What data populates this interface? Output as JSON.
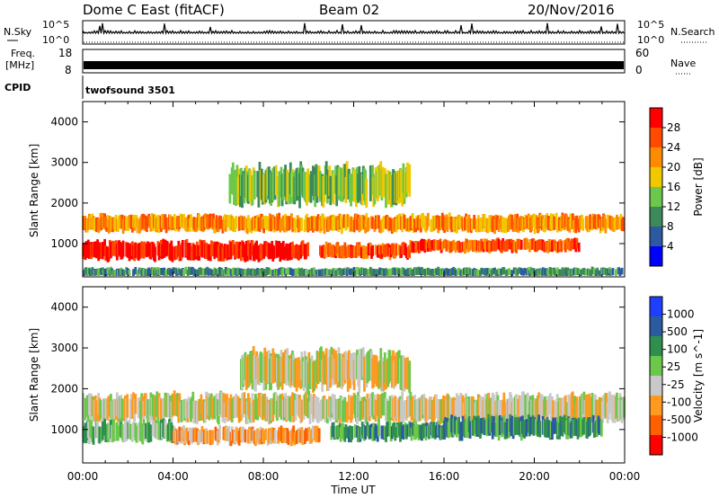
{
  "header": {
    "site": "Dome C East (fitACF)",
    "beam": "Beam 02",
    "date": "20/Nov/2016"
  },
  "status_panels": {
    "nsky_label": "N.Sky",
    "nsearch_label": "N.Search",
    "freq_label": "Freq.",
    "freq_unit": "[MHz]",
    "nave_label": "Nave",
    "cpid_label": "CPID",
    "cpid_value": "twofsound 3501",
    "left_top_ticks": [
      "10^5",
      "10^0"
    ],
    "right_top_ticks": [
      "10^5",
      "10^0"
    ],
    "freq_ticks": [
      "18",
      "8"
    ],
    "nave_ticks": [
      "60",
      "0"
    ]
  },
  "colors": {
    "power": [
      "#0000ff",
      "#2c5aa0",
      "#3c8a5a",
      "#6cc84a",
      "#f0c800",
      "#ff8c00",
      "#ff4a00",
      "#ff0000"
    ],
    "velocity": [
      "#ff0000",
      "#ff6000",
      "#ff9a20",
      "#c8c8c8",
      "#6cc84a",
      "#2f8f4f",
      "#2c5aa0",
      "#1e3fff"
    ],
    "background": "#ffffff"
  },
  "chart_data": [
    {
      "type": "heatmap",
      "panel": "power",
      "ylabel": "Slant Range [km]",
      "xlabel": "Time UT",
      "x_ticks": [
        "00:00",
        "04:00",
        "08:00",
        "12:00",
        "16:00",
        "20:00",
        "00:00"
      ],
      "xlim_hours": [
        0,
        24
      ],
      "y_ticks": [
        1000,
        2000,
        3000,
        4000
      ],
      "ylim": [
        180,
        4500
      ],
      "colorbar_label": "Power [dB]",
      "colorbar_ticks": [
        "4",
        "8",
        "12",
        "16",
        "20",
        "24",
        "28"
      ],
      "bands": [
        {
          "x": [
            0.0,
            24.0
          ],
          "y": [
            1300,
            1700
          ],
          "level": 5
        },
        {
          "x": [
            0.0,
            10.0
          ],
          "y": [
            600,
            1050
          ],
          "level": 7
        },
        {
          "x": [
            10.5,
            14.5
          ],
          "y": [
            650,
            1000
          ],
          "level": 6
        },
        {
          "x": [
            14.5,
            22.0
          ],
          "y": [
            800,
            1100
          ],
          "level": 6
        },
        {
          "x": [
            6.5,
            14.5
          ],
          "y": [
            2000,
            2900
          ],
          "level": 3
        },
        {
          "x": [
            0.0,
            24.0
          ],
          "y": [
            200,
            400
          ],
          "level": 2
        }
      ]
    },
    {
      "type": "heatmap",
      "panel": "velocity",
      "ylabel": "Slant Range [km]",
      "xlabel": "Time UT",
      "x_ticks": [
        "00:00",
        "04:00",
        "08:00",
        "12:00",
        "16:00",
        "20:00",
        "00:00"
      ],
      "xlim_hours": [
        0,
        24
      ],
      "y_ticks": [
        1000,
        2000,
        3000,
        4000
      ],
      "ylim": [
        180,
        4500
      ],
      "colorbar_label": "Velocity [m s^-1]",
      "colorbar_ticks": [
        "1000",
        "500",
        "100",
        "25",
        "-25",
        "-100",
        "-500",
        "-1000"
      ],
      "bands": [
        {
          "x": [
            0.0,
            24.0
          ],
          "y": [
            1200,
            1850
          ],
          "level": 3
        },
        {
          "x": [
            0.0,
            4.0
          ],
          "y": [
            700,
            1200
          ],
          "level": 4
        },
        {
          "x": [
            4.0,
            10.5
          ],
          "y": [
            650,
            1050
          ],
          "level": 2
        },
        {
          "x": [
            11.0,
            16.0
          ],
          "y": [
            750,
            1150
          ],
          "level": 5
        },
        {
          "x": [
            16.0,
            23.0
          ],
          "y": [
            800,
            1300
          ],
          "level": 5
        },
        {
          "x": [
            7.0,
            14.5
          ],
          "y": [
            2000,
            2900
          ],
          "level": 3
        }
      ]
    }
  ]
}
